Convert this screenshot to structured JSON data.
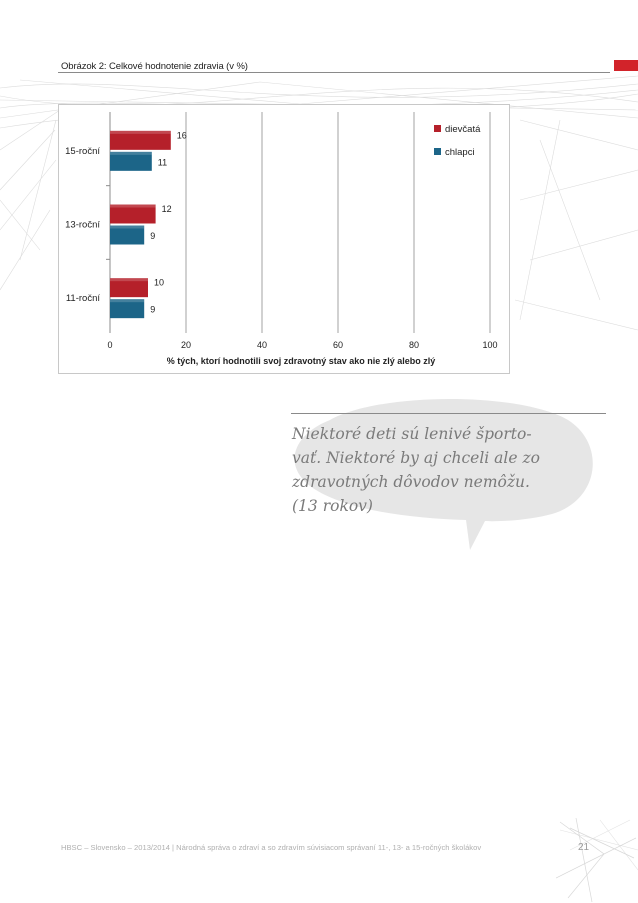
{
  "caption": "Obrázok 2: Celkové hodnotenie zdravia (v %)",
  "colors": {
    "girls": "#b5202a",
    "boys": "#1c6588",
    "accent": "#d2232a",
    "grid": "#8c8c8c"
  },
  "chart_data": {
    "type": "bar",
    "orientation": "horizontal",
    "categories": [
      "15-roční",
      "13-roční",
      "11-roční"
    ],
    "series": [
      {
        "name": "dievčatá",
        "values": [
          16,
          12,
          10
        ]
      },
      {
        "name": "chlapci",
        "values": [
          11,
          9,
          9
        ]
      }
    ],
    "x_ticks": [
      "0",
      "20",
      "40",
      "60",
      "80",
      "100"
    ],
    "xlim": [
      0,
      100
    ],
    "xlabel": "% tých, ktorí hodnotili svoj zdravotný stav ako nie zlý alebo zlý",
    "legend": [
      "dievčatá",
      "chlapci"
    ],
    "legend_position": "top-right",
    "grid": true
  },
  "quote": {
    "lines": [
      "Niektoré deti sú lenivé športo-",
      "vať. Niektoré by aj chceli ale zo",
      "zdravotných dôvodov nemôžu.",
      "(13 rokov)"
    ]
  },
  "footer": {
    "text": "HBSC – Slovensko – 2013/2014 | Národná správa o zdraví a so zdravím súvisiacom správaní 11-, 13- a 15-ročných školákov",
    "page": "21"
  }
}
